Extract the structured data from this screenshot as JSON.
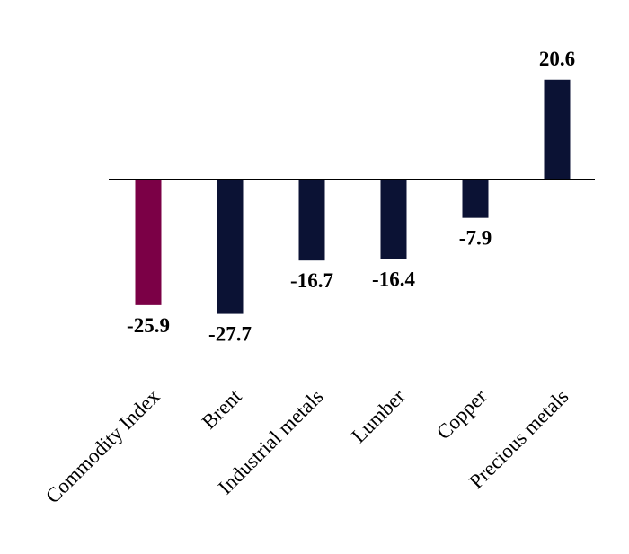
{
  "chart_data": {
    "type": "bar",
    "title": "",
    "xlabel": "",
    "ylabel": "",
    "categories": [
      "Commodity Index",
      "Brent",
      "Industrial metals",
      "Lumber",
      "Copper",
      "Precious metals"
    ],
    "values": [
      -25.9,
      -27.7,
      -16.7,
      -16.4,
      -7.9,
      20.6
    ],
    "colors": [
      "#7b0046",
      "#0b1234",
      "#0b1234",
      "#0b1234",
      "#0b1234",
      "#0b1234"
    ],
    "axis_color": "#000000",
    "grid": false,
    "legend": "none"
  }
}
